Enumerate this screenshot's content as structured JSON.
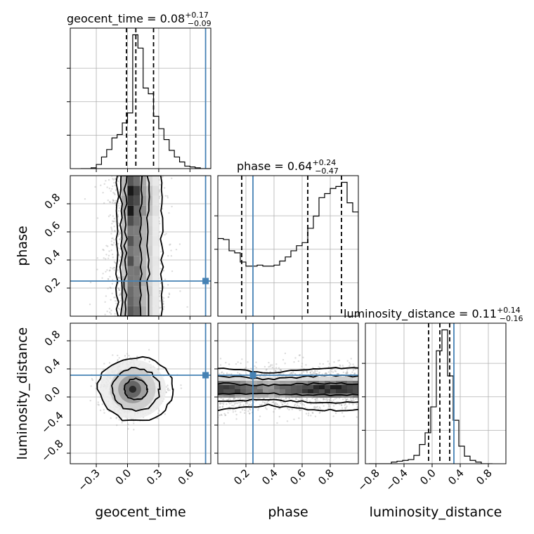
{
  "chart_data": {
    "type": "corner",
    "parameters": [
      "geocent_time",
      "phase",
      "luminosity_distance"
    ],
    "truths": {
      "geocent_time": 0.75,
      "phase": 0.25,
      "luminosity_distance": 0.31
    },
    "titles": [
      {
        "param": "geocent_time",
        "median": "0.08",
        "plus": "+0.17",
        "minus": "−0.09"
      },
      {
        "param": "phase",
        "median": "0.64",
        "plus": "+0.24",
        "minus": "−0.47"
      },
      {
        "param": "luminosity_distance",
        "median": "0.11",
        "plus": "+0.14",
        "minus": "−0.16"
      }
    ],
    "ranges": {
      "geocent_time": [
        -0.55,
        0.8
      ],
      "phase": [
        0.0,
        1.0
      ],
      "luminosity_distance": [
        -0.95,
        1.05
      ]
    },
    "ticks": {
      "geocent_time": [
        "−0.3",
        "0.0",
        "0.3",
        "0.6"
      ],
      "phase": [
        "0.2",
        "0.4",
        "0.6",
        "0.8"
      ],
      "luminosity_distance": [
        "−0.8",
        "−0.4",
        "0.0",
        "0.4",
        "0.8"
      ]
    },
    "tick_values": {
      "geocent_time": [
        -0.3,
        0.0,
        0.3,
        0.6
      ],
      "phase": [
        0.2,
        0.4,
        0.6,
        0.8
      ],
      "luminosity_distance": [
        -0.8,
        -0.4,
        0.0,
        0.4,
        0.8
      ]
    },
    "quantiles": {
      "geocent_time": [
        -0.01,
        0.08,
        0.25
      ],
      "phase": [
        0.17,
        0.64,
        0.88
      ],
      "luminosity_distance": [
        -0.05,
        0.11,
        0.25
      ]
    },
    "histograms": {
      "geocent_time": {
        "bin_edges": [
          -0.45,
          -0.4,
          -0.35,
          -0.3,
          -0.25,
          -0.2,
          -0.15,
          -0.1,
          -0.05,
          0.0,
          0.05,
          0.1,
          0.15,
          0.2,
          0.25,
          0.3,
          0.35,
          0.4,
          0.45,
          0.5,
          0.55,
          0.6,
          0.65,
          0.7,
          0.75,
          0.8
        ],
        "counts": [
          0,
          0,
          1,
          5,
          14,
          23,
          37,
          41,
          55,
          67,
          161,
          145,
          97,
          90,
          63,
          48,
          35,
          22,
          14,
          8,
          3,
          2,
          1,
          0,
          0
        ]
      },
      "phase": {
        "bin_edges": [
          0.0,
          0.04,
          0.08,
          0.12,
          0.16,
          0.2,
          0.24,
          0.28,
          0.32,
          0.36,
          0.4,
          0.44,
          0.48,
          0.52,
          0.56,
          0.6,
          0.64,
          0.68,
          0.72,
          0.76,
          0.8,
          0.84,
          0.88,
          0.92,
          0.96,
          1.0
        ],
        "counts": [
          76,
          75,
          64,
          62,
          53,
          49,
          49,
          50,
          49,
          49,
          50,
          54,
          58,
          64,
          69,
          72,
          86,
          98,
          116,
          120,
          125,
          127,
          131,
          111,
          102
        ]
      },
      "luminosity_distance": {
        "bin_edges": [
          -0.9,
          -0.82,
          -0.74,
          -0.66,
          -0.58,
          -0.5,
          -0.42,
          -0.34,
          -0.26,
          -0.18,
          -0.1,
          -0.02,
          0.06,
          0.14,
          0.22,
          0.3,
          0.38,
          0.46,
          0.54,
          0.62,
          0.7,
          0.78,
          0.86
        ],
        "counts": [
          0,
          0,
          0,
          0,
          2,
          3,
          4,
          5,
          10,
          23,
          37,
          68,
          135,
          160,
          105,
          52,
          21,
          9,
          4,
          2,
          0,
          0
        ]
      }
    },
    "density_2d": {
      "geocent_time_vs_phase": {
        "contour_x_ranges_by_level": [
          [
            [
              -0.02,
              0.13
            ]
          ],
          [
            [
              -0.06,
              0.2
            ]
          ],
          [
            [
              -0.1,
              0.33
            ]
          ]
        ],
        "truth": [
          0.75,
          0.25
        ]
      },
      "geocent_time_vs_luminosity_distance": {
        "center": [
          0.05,
          0.11
        ],
        "truth": [
          0.75,
          0.31
        ]
      },
      "phase_vs_luminosity_distance": {
        "center_band": 0.11,
        "truth": [
          0.25,
          0.31
        ]
      }
    }
  }
}
